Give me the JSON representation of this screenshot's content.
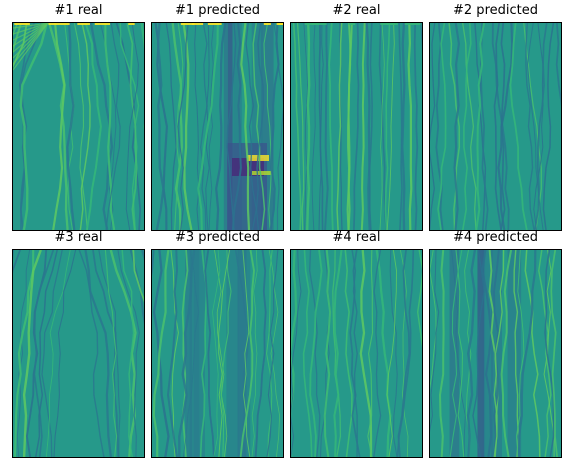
{
  "figure": {
    "panels": [
      {
        "title": "#1 real",
        "style": "real-fan",
        "seed": 11,
        "accent": "#fde725"
      },
      {
        "title": "#1 predicted",
        "style": "pred-dark",
        "seed": 23,
        "accent": "#fde725"
      },
      {
        "title": "#2 real",
        "style": "real-vertical",
        "seed": 37,
        "accent": "#35b779"
      },
      {
        "title": "#2 predicted",
        "style": "pred-mild",
        "seed": 41,
        "accent": "#6ece58"
      },
      {
        "title": "#3 real",
        "style": "real-diagonal",
        "seed": 53,
        "accent": "#35b779"
      },
      {
        "title": "#3 predicted",
        "style": "pred-bands",
        "seed": 67,
        "accent": "#31688e"
      },
      {
        "title": "#4 real",
        "style": "real-wavy",
        "seed": 79,
        "accent": "#35b779"
      },
      {
        "title": "#4 predicted",
        "style": "pred-bands-dark",
        "seed": 83,
        "accent": "#3e4989"
      }
    ],
    "colormap": [
      "#440154",
      "#3b528b",
      "#21918c",
      "#27a088",
      "#35b779",
      "#5ec962",
      "#fde725"
    ]
  }
}
